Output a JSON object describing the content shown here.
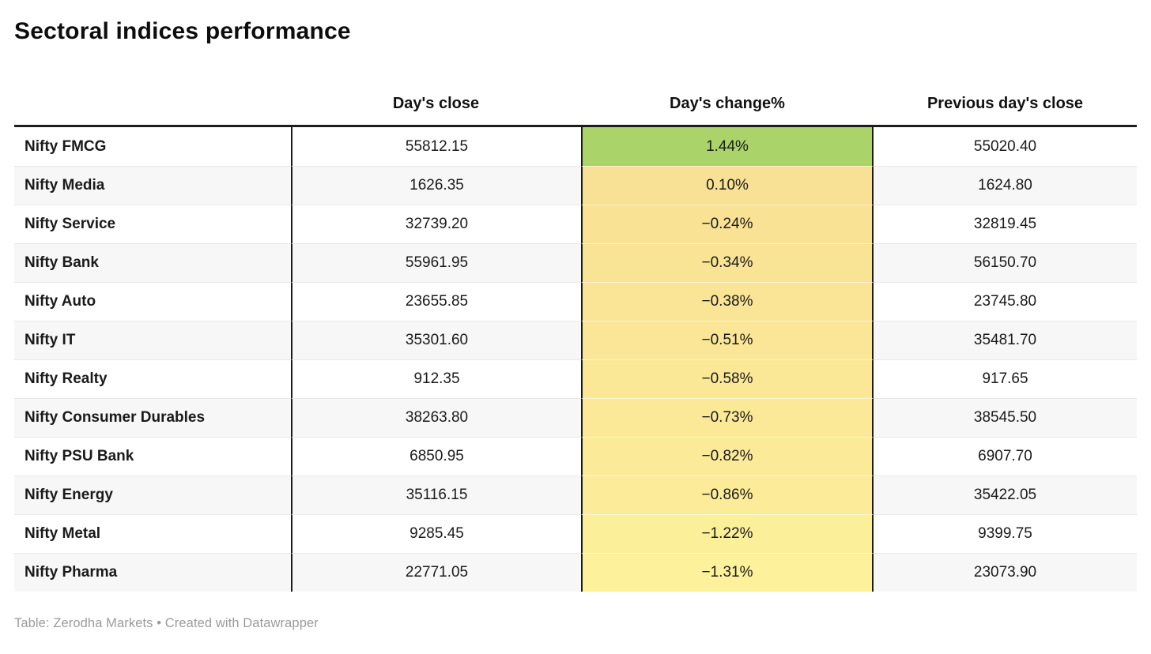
{
  "title": "Sectoral indices performance",
  "footer": "Table: Zerodha Markets • Created with Datawrapper",
  "colors": {
    "positive_change_green": "#aad36a",
    "neutral_change_gold": "#f8e094",
    "most_negative_change_yellow": "#fdf19b",
    "header_rule_black": "#1c1c1c",
    "column_border_black": "#1c1c1c",
    "alt_row_bg": "#f7f7f7",
    "row_separator": "#e8e8e8",
    "footer_gray": "#9b9b9b"
  },
  "chart_data": {
    "type": "table",
    "title": "Sectoral indices performance",
    "columns": [
      "",
      "Day's close",
      "Day's change%",
      "Previous day's close"
    ],
    "heatmap_column": "Day's change%",
    "rows": [
      {
        "name": "Nifty FMCG",
        "close": "55812.15",
        "change": "1.44%",
        "prev": "55020.40",
        "change_bg": "#aad36a"
      },
      {
        "name": "Nifty Media",
        "close": "1626.35",
        "change": "0.10%",
        "prev": "1624.80",
        "change_bg": "#f8e094"
      },
      {
        "name": "Nifty Service",
        "close": "32739.20",
        "change": "−0.24%",
        "prev": "32819.45",
        "change_bg": "#f9e294"
      },
      {
        "name": "Nifty Bank",
        "close": "55961.95",
        "change": "−0.34%",
        "prev": "56150.70",
        "change_bg": "#f9e395"
      },
      {
        "name": "Nifty Auto",
        "close": "23655.85",
        "change": "−0.38%",
        "prev": "23745.80",
        "change_bg": "#fae495"
      },
      {
        "name": "Nifty IT",
        "close": "35301.60",
        "change": "−0.51%",
        "prev": "35481.70",
        "change_bg": "#fae696"
      },
      {
        "name": "Nifty Realty",
        "close": "912.35",
        "change": "−0.58%",
        "prev": "917.65",
        "change_bg": "#fbe897"
      },
      {
        "name": "Nifty Consumer Durables",
        "close": "38263.80",
        "change": "−0.73%",
        "prev": "38545.50",
        "change_bg": "#fbe997"
      },
      {
        "name": "Nifty PSU Bank",
        "close": "6850.95",
        "change": "−0.82%",
        "prev": "6907.70",
        "change_bg": "#fbea98"
      },
      {
        "name": "Nifty Energy",
        "close": "35116.15",
        "change": "−0.86%",
        "prev": "35422.05",
        "change_bg": "#fcec99"
      },
      {
        "name": "Nifty Metal",
        "close": "9285.45",
        "change": "−1.22%",
        "prev": "9399.75",
        "change_bg": "#fcef9a"
      },
      {
        "name": "Nifty Pharma",
        "close": "22771.05",
        "change": "−1.31%",
        "prev": "23073.90",
        "change_bg": "#fdf19b"
      }
    ]
  }
}
